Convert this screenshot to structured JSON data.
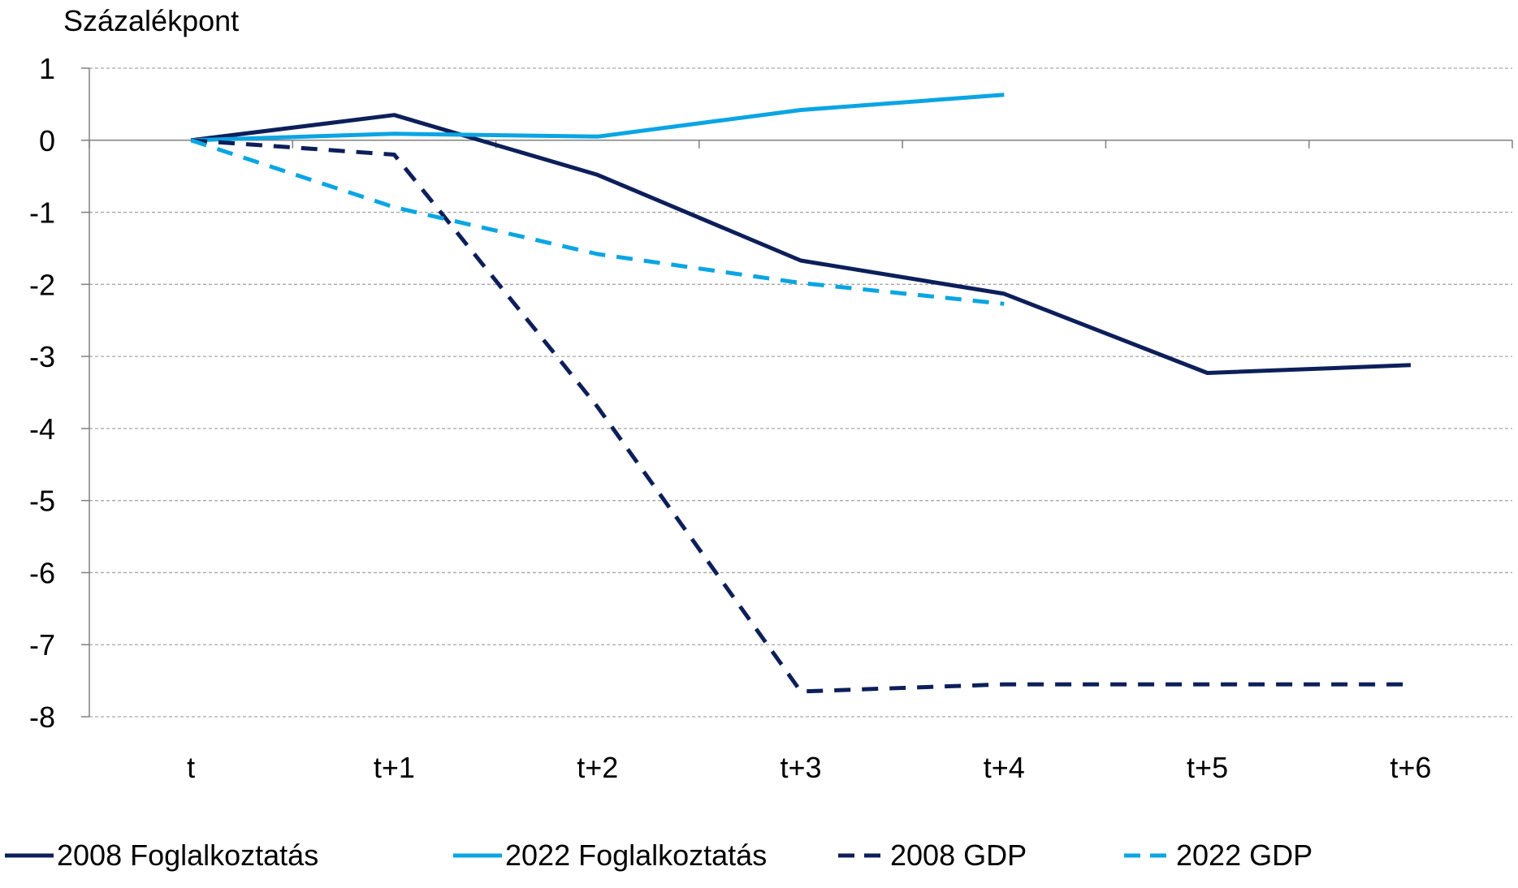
{
  "chart_data": {
    "type": "line",
    "title": "",
    "ylabel": "Százalékpont",
    "xlabel": "",
    "categories": [
      "t",
      "t+1",
      "t+2",
      "t+3",
      "t+4",
      "t+5",
      "t+6"
    ],
    "ylim": [
      -8,
      1
    ],
    "yticks": [
      1,
      0,
      -1,
      -2,
      -3,
      -4,
      -5,
      -6,
      -7,
      -8
    ],
    "grid": "horizontal dashed",
    "legend_position": "bottom",
    "series": [
      {
        "name": "2008 Foglalkoztatás",
        "values": [
          0,
          0.35,
          -0.48,
          -1.67,
          -2.13,
          -3.23,
          -3.12
        ],
        "color": "#0c1f5a",
        "dash": "solid"
      },
      {
        "name": "2022 Foglalkoztatás",
        "values": [
          0,
          0.09,
          0.05,
          0.42,
          0.63,
          null,
          null
        ],
        "color": "#0aa5e3",
        "dash": "solid"
      },
      {
        "name": "2008 GDP",
        "values": [
          0,
          -0.2,
          -3.7,
          -7.65,
          -7.55,
          -7.55,
          -7.55
        ],
        "color": "#0c1f5a",
        "dash": "dashed"
      },
      {
        "name": "2022 GDP",
        "values": [
          0,
          -0.93,
          -1.58,
          -1.98,
          -2.27,
          null,
          null
        ],
        "color": "#0aa5e3",
        "dash": "dashed"
      }
    ]
  }
}
